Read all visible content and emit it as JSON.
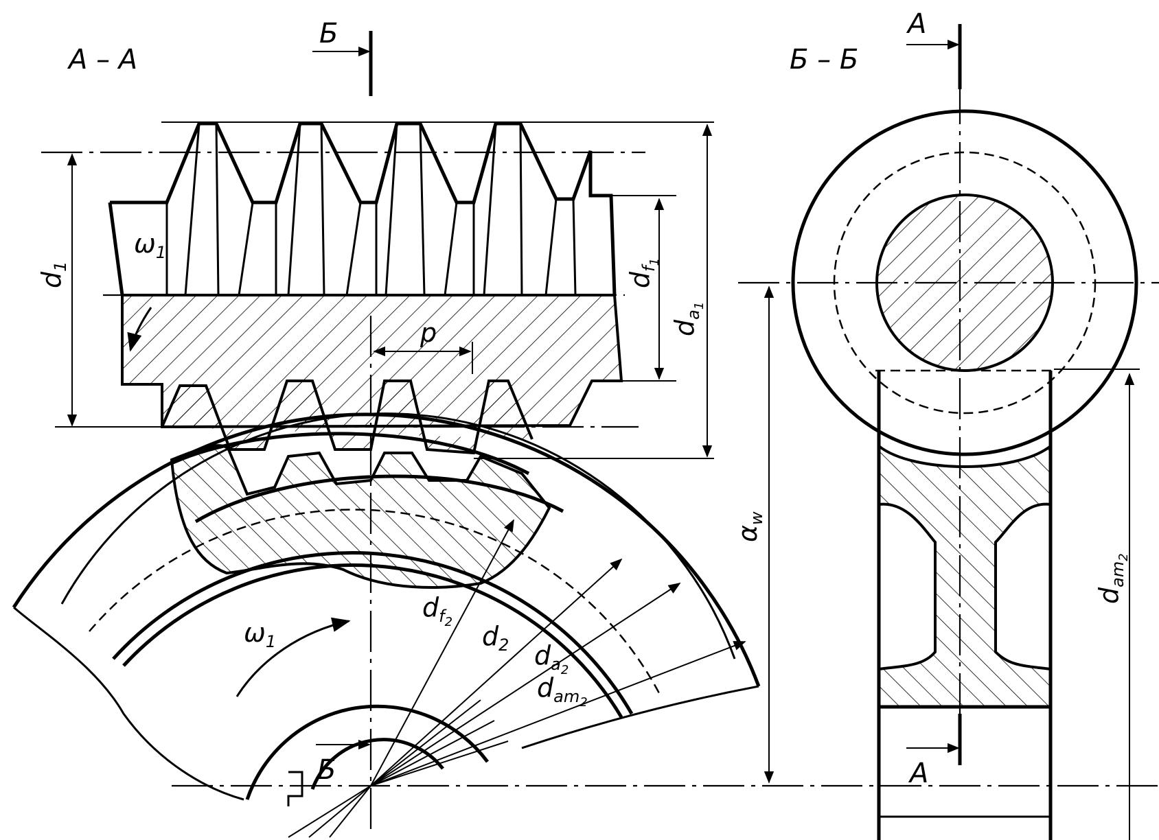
{
  "section_labels": {
    "aa": "А – А",
    "bb": "Б – Б",
    "cut_b_top": "Б",
    "cut_b_bottom": "Б",
    "cut_a_top": "А",
    "cut_a_bottom": "А"
  },
  "dimensions": {
    "d1": {
      "base": "d",
      "sub": "1"
    },
    "df1": {
      "base": "d",
      "sub": "f",
      "subsub": "1"
    },
    "da1": {
      "base": "d",
      "sub": "a",
      "subsub": "1"
    },
    "p": "p",
    "omega_top": {
      "base": "ω",
      "sub": "1"
    },
    "omega_bottom": {
      "base": "ω",
      "sub": "1"
    },
    "df2": {
      "base": "d",
      "sub": "f",
      "subsub": "2"
    },
    "d2": {
      "base": "d",
      "sub": "2"
    },
    "da2": {
      "base": "d",
      "sub": "a",
      "subsub": "2"
    },
    "dam2_wheel": {
      "base": "d",
      "sub": "am",
      "subsub": "2"
    },
    "aw": {
      "base": "α",
      "sub": "w"
    },
    "dam2_side": {
      "base": "d",
      "sub": "am",
      "subsub": "2"
    }
  }
}
